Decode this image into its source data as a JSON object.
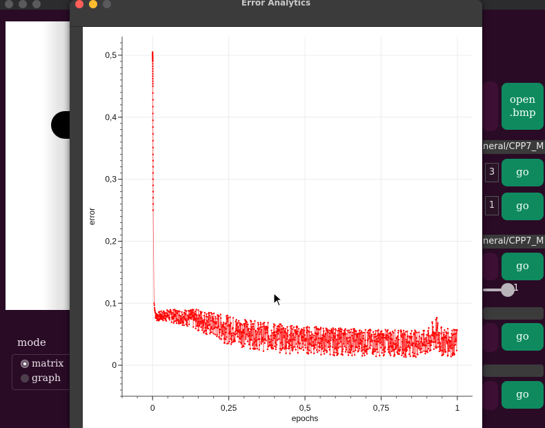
{
  "background_app": {
    "mode_label": "mode",
    "modes": [
      {
        "label": "matrix",
        "selected": true
      },
      {
        "label": "graph",
        "selected": false
      }
    ],
    "open_button": "open\n.bmp",
    "path_1": "neral/CPP7_M",
    "path_2": "neral/CPP7_M",
    "spin_1": "3",
    "spin_2": "1",
    "slider_value": "1",
    "go_buttons": [
      "go",
      "go",
      "go",
      "go",
      "go"
    ],
    "accent_color": "#0f8a5f"
  },
  "window": {
    "title": "Error Analytics"
  },
  "chart_data": {
    "type": "scatter",
    "xlabel": "epochs",
    "ylabel": "error",
    "xlim": [
      -0.1,
      1.05
    ],
    "ylim": [
      -0.05,
      0.53
    ],
    "x_ticks": [
      "0",
      "0,25",
      "0,5",
      "0,75",
      "1"
    ],
    "y_ticks": [
      "0",
      "0,1",
      "0,2",
      "0,3",
      "0,4",
      "0,5"
    ],
    "grid": true,
    "series": [
      {
        "color": "#ff0000",
        "x": [
          0,
          0.0005,
          0.001,
          0.0015,
          0.002,
          0.003,
          0.005,
          0.01,
          0.05,
          0.1,
          0.15,
          0.2,
          0.25,
          0.3,
          0.35,
          0.4,
          0.45,
          0.5,
          0.55,
          0.6,
          0.65,
          0.7,
          0.75,
          0.8,
          0.85,
          0.9,
          0.93,
          0.95,
          1.0
        ],
        "y_upper": [
          0.505,
          0.49,
          0.45,
          0.34,
          0.24,
          0.15,
          0.1,
          0.085,
          0.09,
          0.09,
          0.09,
          0.085,
          0.08,
          0.075,
          0.07,
          0.068,
          0.065,
          0.063,
          0.062,
          0.06,
          0.06,
          0.058,
          0.058,
          0.057,
          0.057,
          0.056,
          0.08,
          0.06,
          0.058
        ],
        "y_lower": [
          0.505,
          0.49,
          0.45,
          0.34,
          0.24,
          0.15,
          0.1,
          0.068,
          0.066,
          0.06,
          0.048,
          0.035,
          0.025,
          0.02,
          0.015,
          0.012,
          0.01,
          0.009,
          0.008,
          0.007,
          0.007,
          0.006,
          0.006,
          0.006,
          0.005,
          0.005,
          0.005,
          0.005,
          0.005
        ]
      }
    ]
  }
}
